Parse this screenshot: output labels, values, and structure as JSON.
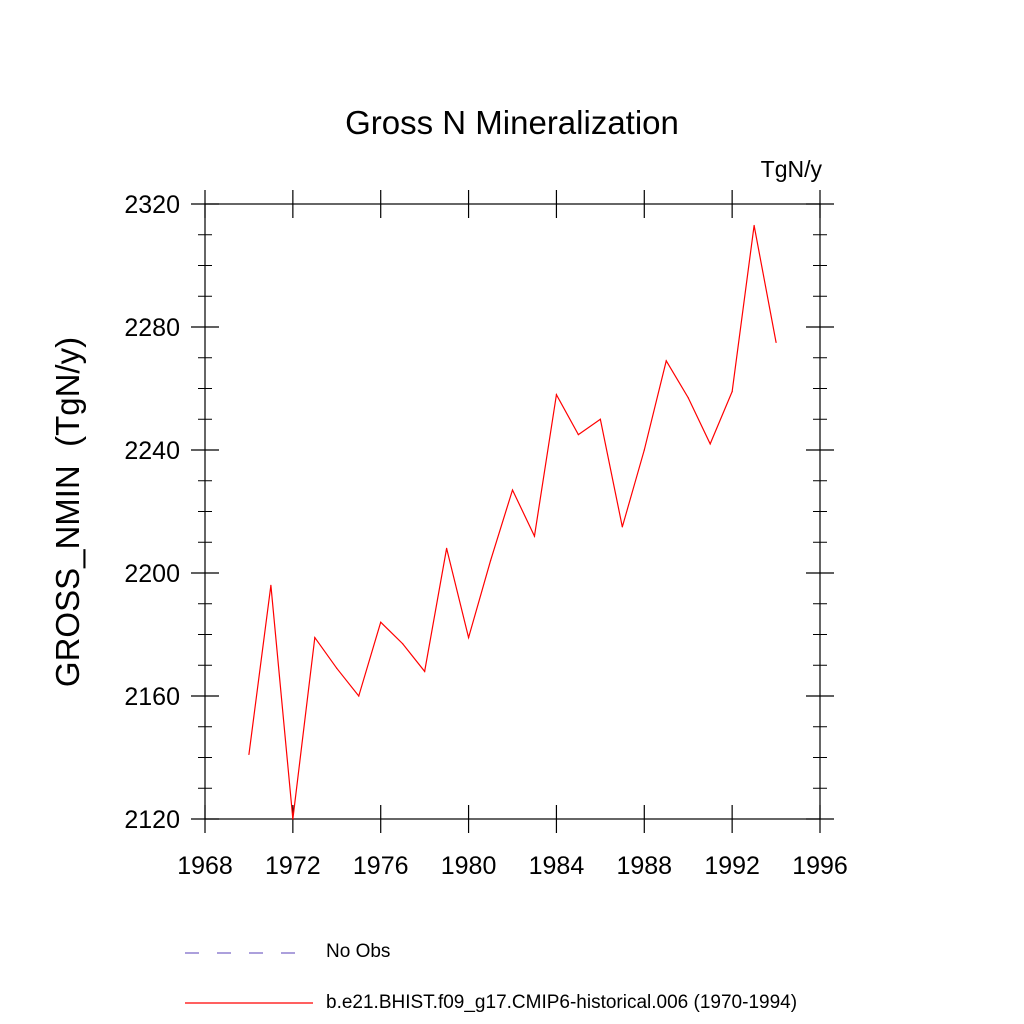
{
  "chart_data": {
    "type": "line",
    "title": "Gross N Mineralization",
    "units_label": "TgN/y",
    "ylabel": "GROSS_NMIN  (TgN/y)",
    "xlabel": "",
    "xlim": [
      1968,
      1996
    ],
    "ylim": [
      2120,
      2320
    ],
    "x_ticks": [
      1968,
      1972,
      1976,
      1980,
      1984,
      1988,
      1992,
      1996
    ],
    "y_ticks": [
      2120,
      2160,
      2200,
      2240,
      2280,
      2320
    ],
    "grid": false,
    "series": [
      {
        "name": "b.e21.BHIST.f09_g17.CMIP6-historical.006 (1970-1994)",
        "color": "#ff0000",
        "x": [
          1970,
          1971,
          1972,
          1973,
          1974,
          1975,
          1976,
          1977,
          1978,
          1979,
          1980,
          1981,
          1982,
          1983,
          1984,
          1985,
          1986,
          1987,
          1988,
          1989,
          1990,
          1991,
          1992,
          1993,
          1994
        ],
        "values": [
          2141,
          2196,
          2120,
          2179,
          2169,
          2160,
          2184,
          2177,
          2168,
          2208,
          2179,
          2204,
          2227,
          2212,
          2258,
          2245,
          2250,
          2215,
          2240,
          2269,
          2257,
          2242,
          2259,
          2313,
          2275
        ]
      }
    ],
    "legend": [
      {
        "label": "No Obs",
        "color": "#7b68c8",
        "style": "dashed"
      },
      {
        "label": "b.e21.BHIST.f09_g17.CMIP6-historical.006 (1970-1994)",
        "color": "#ff0000",
        "style": "solid"
      }
    ]
  }
}
